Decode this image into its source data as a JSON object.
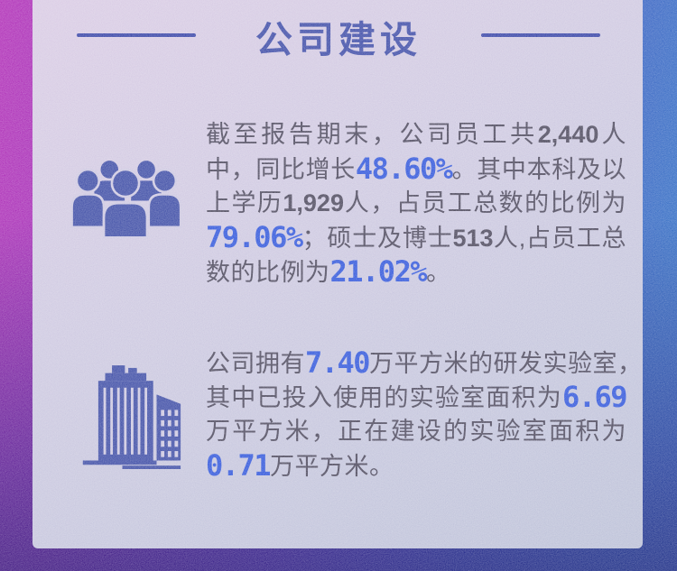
{
  "title": "公司建设",
  "colors": {
    "accent_blue": "#3b4aa4",
    "digital_blue": "#2d53da",
    "body_text": "#484459",
    "panel_light": "#c9c5e0",
    "edge_magenta": "#a32ab4",
    "edge_blue": "#2f6ac3",
    "edge_indigo": "#242c9a"
  },
  "sections": [
    {
      "icon": "people-group-icon",
      "lines": [
        [
          {
            "t": "截至报告期末，公司员工共",
            "s": "n"
          },
          {
            "t": "2,440",
            "s": "b"
          },
          {
            "t": "人",
            "s": "n"
          }
        ],
        [
          {
            "t": "中，同比增长",
            "s": "n"
          },
          {
            "t": "48.60%",
            "s": "d"
          },
          {
            "t": "。其中本科及以",
            "s": "n"
          }
        ],
        [
          {
            "t": "上学历",
            "s": "n"
          },
          {
            "t": "1,929",
            "s": "b"
          },
          {
            "t": "人，占员工总数的比例为",
            "s": "n"
          }
        ],
        [
          {
            "t": "79.06%",
            "s": "d"
          },
          {
            "t": "；硕士及博士",
            "s": "n"
          },
          {
            "t": "513",
            "s": "b"
          },
          {
            "t": "人,占员工总",
            "s": "n"
          }
        ],
        [
          {
            "t": "数的比例为",
            "s": "n"
          },
          {
            "t": "21.02%",
            "s": "d"
          },
          {
            "t": "。",
            "s": "n"
          }
        ]
      ]
    },
    {
      "icon": "buildings-icon",
      "lines": [
        [
          {
            "t": "公司拥有",
            "s": "n"
          },
          {
            "t": "7.40",
            "s": "d"
          },
          {
            "t": "万平方米的研发实验室，",
            "s": "n"
          }
        ],
        [
          {
            "t": "其中已投入使用的实验室面积为",
            "s": "n"
          },
          {
            "t": "6.69",
            "s": "d"
          }
        ],
        [
          {
            "t": "万平方米，正在建设的实验室面积为",
            "s": "n"
          }
        ],
        [
          {
            "t": "0.71",
            "s": "d"
          },
          {
            "t": "万平方米。",
            "s": "n"
          }
        ]
      ]
    }
  ]
}
